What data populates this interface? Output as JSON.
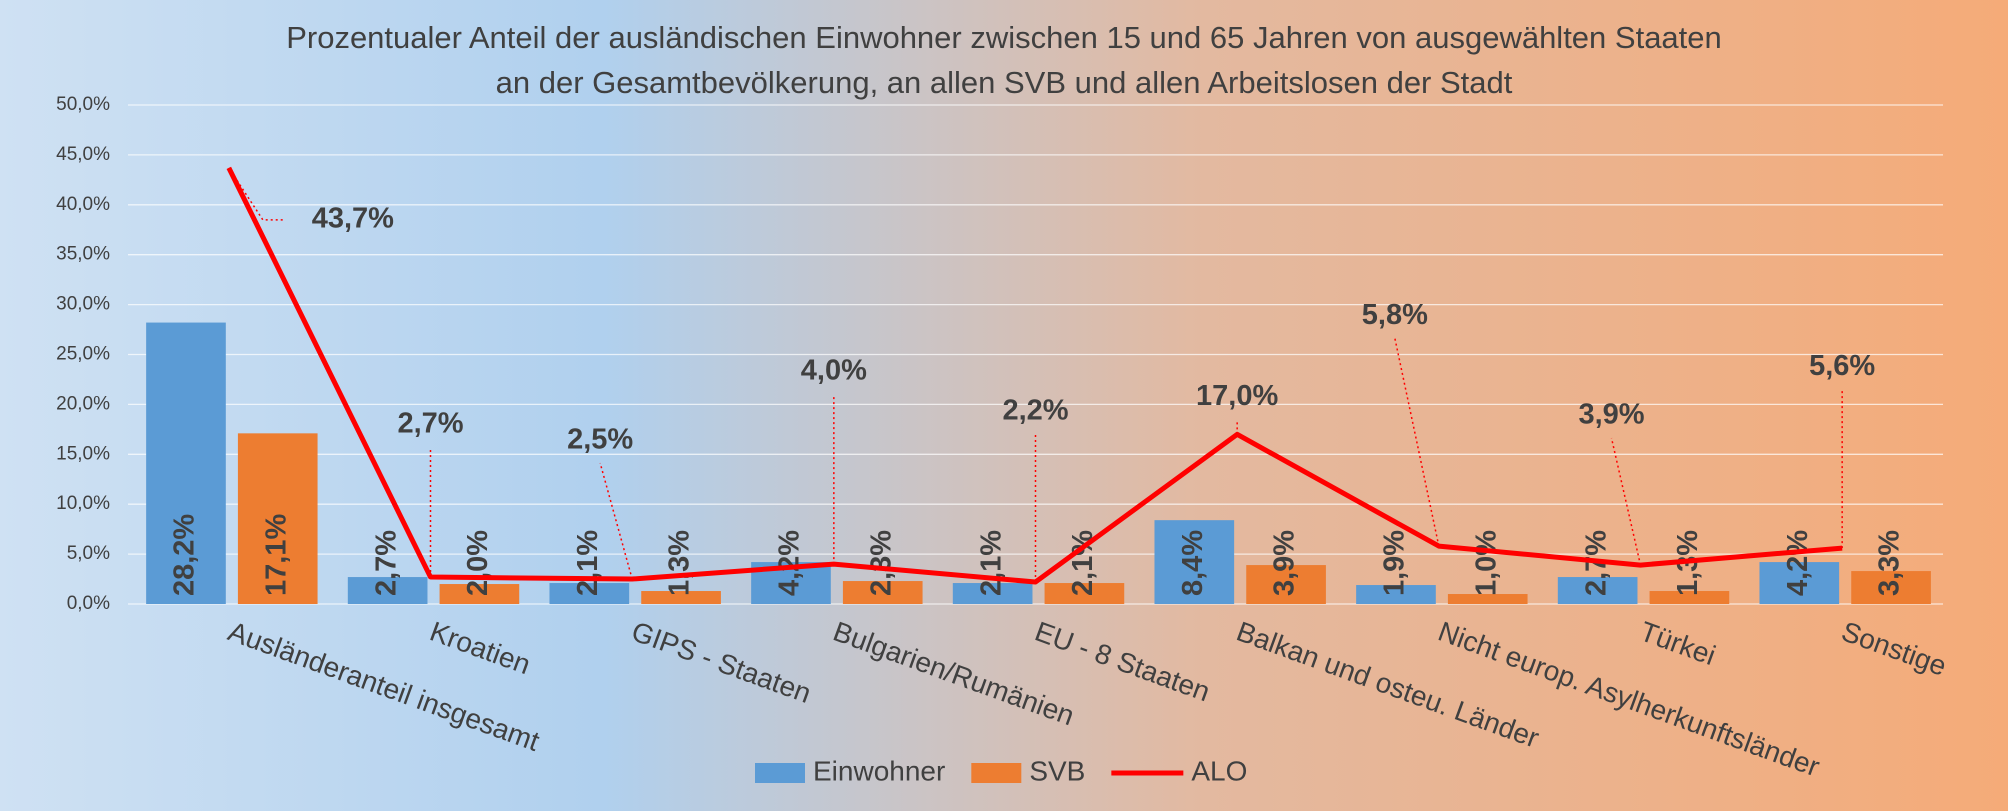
{
  "chart_data": {
    "type": "bar",
    "title": [
      "Prozentualer Anteil der ausländischen Einwohner zwischen 15 und 65 Jahren von ausgewählten Staaten",
      "an der Gesamtbevölkerung, an allen SVB und allen  Arbeitslosen der Stadt"
    ],
    "categories": [
      "Ausländeranteil insgesamt",
      "Kroatien",
      "GIPS - Staaten",
      "Bulgarien/Rumänien",
      "EU - 8 Staaten",
      "Balkan und osteu. Länder",
      "Nicht europ. Asylherkunftsländer",
      "Türkei",
      "Sonstige"
    ],
    "series": [
      {
        "name": "Einwohner",
        "color": "#5b9bd5",
        "values": [
          28.2,
          2.7,
          2.1,
          4.2,
          2.1,
          8.4,
          1.9,
          2.7,
          4.2
        ],
        "value_labels": [
          "28,2%",
          "2,7%",
          "2,1%",
          "4,2%",
          "2,1%",
          "8,4%",
          "1,9%",
          "2,7%",
          "4,2%"
        ]
      },
      {
        "name": "SVB",
        "color": "#ed7d31",
        "values": [
          17.1,
          2.0,
          1.3,
          2.3,
          2.1,
          3.9,
          1.0,
          1.3,
          3.3
        ],
        "value_labels": [
          "17,1%",
          "2,0%",
          "1,3%",
          "2,3%",
          "2,1%",
          "3,9%",
          "1,0%",
          "1,3%",
          "3,3%"
        ]
      },
      {
        "name": "ALO",
        "type": "line",
        "color": "#ff0000",
        "values": [
          43.7,
          2.7,
          2.5,
          4.0,
          2.2,
          17.0,
          5.8,
          3.9,
          5.6
        ],
        "value_labels": [
          "43,7%",
          "2,7%",
          "2,5%",
          "4,0%",
          "2,2%",
          "17,0%",
          "5,8%",
          "3,9%",
          "5,6%"
        ]
      }
    ],
    "ylim": [
      0,
      50
    ],
    "yticks": [
      {
        "value": 0,
        "label": "0,0%"
      },
      {
        "value": 5,
        "label": "5,0%"
      },
      {
        "value": 10,
        "label": "10,0%"
      },
      {
        "value": 15,
        "label": "15,0%"
      },
      {
        "value": 20,
        "label": "20,0%"
      },
      {
        "value": 25,
        "label": "25,0%"
      },
      {
        "value": 30,
        "label": "30,0%"
      },
      {
        "value": 35,
        "label": "35,0%"
      },
      {
        "value": 40,
        "label": "40,0%"
      },
      {
        "value": 45,
        "label": "45,0%"
      },
      {
        "value": 50,
        "label": "50,0%"
      }
    ],
    "grid": true,
    "legend": "bottom"
  }
}
